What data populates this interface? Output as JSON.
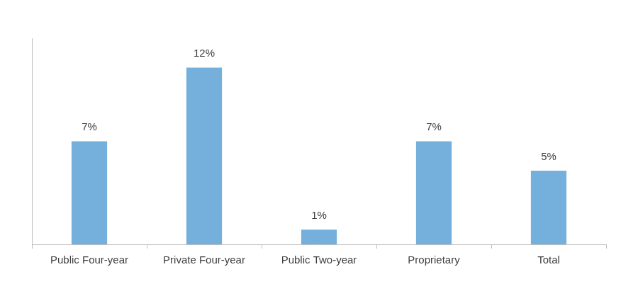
{
  "chart_data": {
    "type": "bar",
    "categories": [
      "Public Four-year",
      "Private Four-year",
      "Public Two-year",
      "Proprietary",
      "Total"
    ],
    "values": [
      7,
      12,
      1,
      7,
      5
    ],
    "value_labels": [
      "7%",
      "12%",
      "1%",
      "7%",
      "5%"
    ],
    "color": "#75b0dd",
    "ylim": [
      0,
      14
    ],
    "yticks": [],
    "grid": false,
    "data_labels": true,
    "tick_labels": "x"
  }
}
